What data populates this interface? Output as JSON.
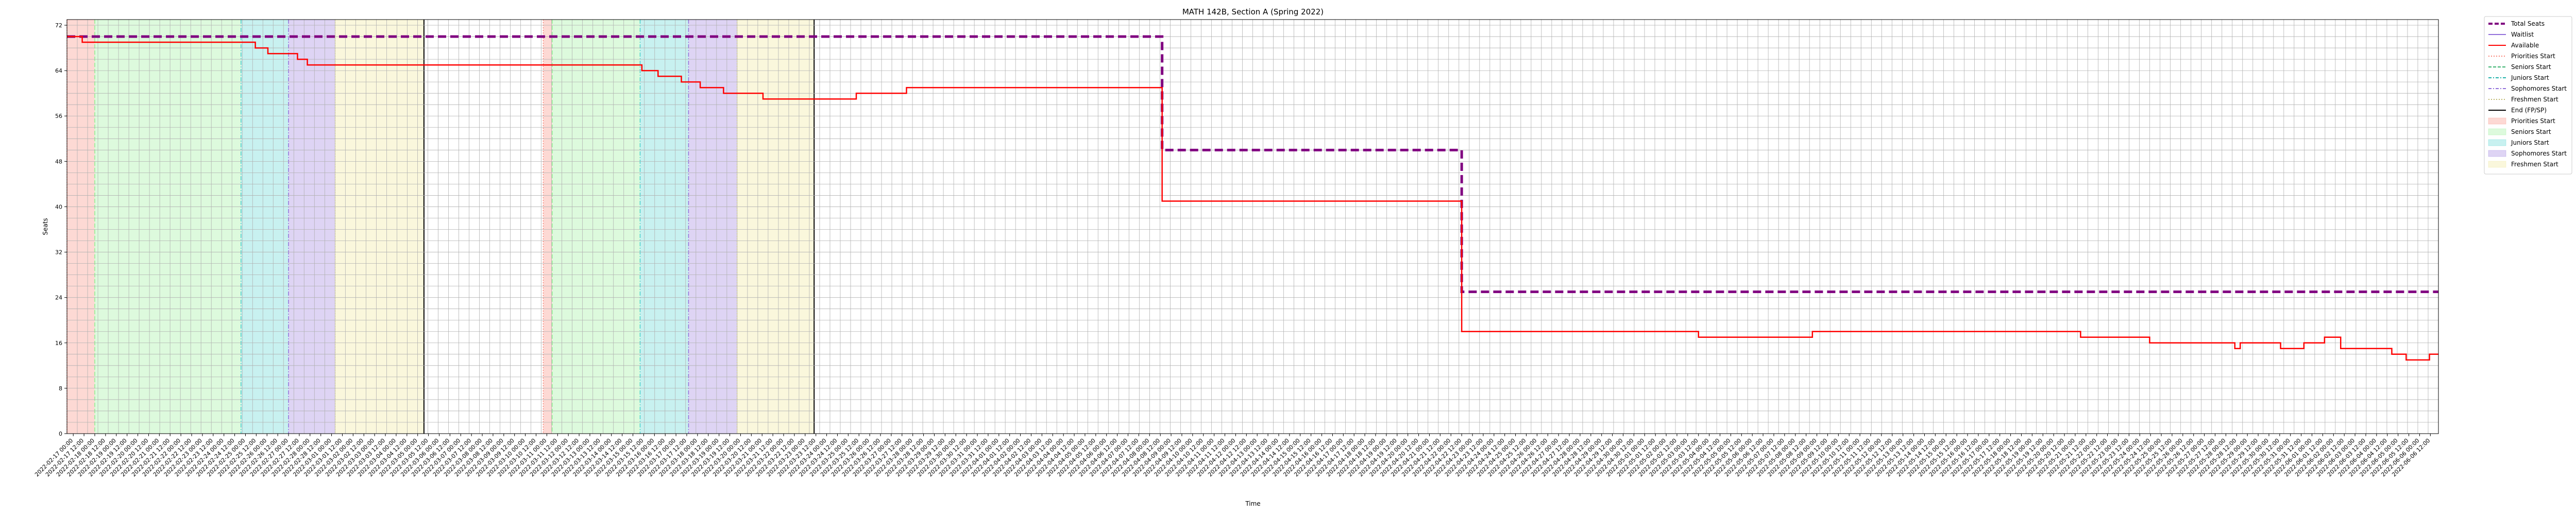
{
  "chart_data": {
    "type": "line",
    "title": "MATH 142B, Section A (Spring 2022)",
    "xlabel": "Time",
    "ylabel": "Seats",
    "ylim": [
      0,
      73
    ],
    "yticks": [
      0,
      8,
      16,
      24,
      32,
      40,
      48,
      56,
      64,
      72
    ],
    "x_range": [
      "2022-02-16 17:00",
      "2022-06-06 21:00"
    ],
    "grid": true,
    "legend_position": "outside-right",
    "colors": {
      "total": "#800080",
      "waitlist": "#9370db",
      "available": "#ff0000",
      "priorities": "#fa8072",
      "seniors": "#90ee90",
      "juniors": "#48d1cc",
      "sophomores": "#9370db",
      "freshmen": "#f0e68c",
      "end": "#000000"
    },
    "legend": [
      {
        "label": "Total Seats",
        "kind": "line",
        "style": "dashed-thick",
        "color": "#800080"
      },
      {
        "label": "Waitlist",
        "kind": "line",
        "style": "solid",
        "color": "#9370db"
      },
      {
        "label": "Available",
        "kind": "line",
        "style": "solid",
        "color": "#ff0000"
      },
      {
        "label": "Priorities Start",
        "kind": "line",
        "style": "dotted",
        "color": "#fa8072"
      },
      {
        "label": "Seniors Start",
        "kind": "line",
        "style": "dashed",
        "color": "#3cb371"
      },
      {
        "label": "Juniors Start",
        "kind": "line",
        "style": "dashdot",
        "color": "#20b2aa"
      },
      {
        "label": "Sophomores Start",
        "kind": "line",
        "style": "dashdot",
        "color": "#9370db"
      },
      {
        "label": "Freshmen Start",
        "kind": "line",
        "style": "dotted",
        "color": "#bdb76b"
      },
      {
        "label": "End (FP/SP)",
        "kind": "line",
        "style": "solid",
        "color": "#000000"
      },
      {
        "label": "Priorities Start",
        "kind": "patch",
        "color": "#fa8072"
      },
      {
        "label": "Seniors Start",
        "kind": "patch",
        "color": "#90ee90"
      },
      {
        "label": "Juniors Start",
        "kind": "patch",
        "color": "#48d1cc"
      },
      {
        "label": "Sophomores Start",
        "kind": "patch",
        "color": "#9370db"
      },
      {
        "label": "Freshmen Start",
        "kind": "patch",
        "color": "#f0e68c"
      }
    ],
    "phases": [
      {
        "kind": "priorities",
        "start": "2022-02-16 17:00",
        "end": "2022-02-18 00:00"
      },
      {
        "kind": "seniors",
        "start": "2022-02-18 00:00",
        "end": "2022-02-24 19:00"
      },
      {
        "kind": "juniors",
        "start": "2022-02-24 19:00",
        "end": "2022-02-27 00:00"
      },
      {
        "kind": "sophomores",
        "start": "2022-02-27 00:00",
        "end": "2022-03-01 04:00"
      },
      {
        "kind": "freshmen",
        "start": "2022-03-01 04:00",
        "end": "2022-03-05 07:00"
      },
      {
        "kind": "end",
        "start": "2022-03-05 07:00",
        "end": "2022-03-05 07:00"
      },
      {
        "kind": "priorities",
        "start": "2022-03-10 20:00",
        "end": "2022-03-11 06:00"
      },
      {
        "kind": "seniors",
        "start": "2022-03-11 06:00",
        "end": "2022-03-15 08:00"
      },
      {
        "kind": "juniors",
        "start": "2022-03-15 08:00",
        "end": "2022-03-17 14:00"
      },
      {
        "kind": "sophomores",
        "start": "2022-03-17 14:00",
        "end": "2022-03-19 20:00"
      },
      {
        "kind": "freshmen",
        "start": "2022-03-19 20:00",
        "end": "2022-03-23 10:00"
      },
      {
        "kind": "end",
        "start": "2022-03-23 10:00",
        "end": "2022-03-23 10:00"
      }
    ],
    "series": [
      {
        "name": "Total Seats",
        "points": [
          [
            "2022-02-16 17:00",
            70
          ],
          [
            "2022-04-08 14:00",
            50
          ],
          [
            "2022-04-22 12:00",
            25
          ],
          [
            "2022-06-06 21:00",
            25
          ]
        ]
      },
      {
        "name": "Available",
        "points": [
          [
            "2022-02-16 17:00",
            70
          ],
          [
            "2022-02-17 10:00",
            69
          ],
          [
            "2022-02-24 19:00",
            69
          ],
          [
            "2022-02-25 11:00",
            68
          ],
          [
            "2022-02-26 01:00",
            67
          ],
          [
            "2022-02-27 00:00",
            67
          ],
          [
            "2022-02-27 10:00",
            66
          ],
          [
            "2022-02-27 21:00",
            65
          ],
          [
            "2022-03-15 01:00",
            65
          ],
          [
            "2022-03-15 10:00",
            64
          ],
          [
            "2022-03-16 04:00",
            63
          ],
          [
            "2022-03-17 06:00",
            62
          ],
          [
            "2022-03-18 03:00",
            61
          ],
          [
            "2022-03-19 05:00",
            60
          ],
          [
            "2022-03-21 01:00",
            59
          ],
          [
            "2022-03-25 09:00",
            60
          ],
          [
            "2022-03-27 17:00",
            61
          ],
          [
            "2022-04-08 14:00",
            41
          ],
          [
            "2022-04-22 12:00",
            18
          ],
          [
            "2022-05-03 12:00",
            17
          ],
          [
            "2022-05-08 19:00",
            18
          ],
          [
            "2022-05-21 06:00",
            17
          ],
          [
            "2022-05-24 11:00",
            16
          ],
          [
            "2022-05-28 10:00",
            15
          ],
          [
            "2022-05-28 16:00",
            16
          ],
          [
            "2022-05-30 13:00",
            15
          ],
          [
            "2022-05-31 15:00",
            16
          ],
          [
            "2022-06-01 14:00",
            17
          ],
          [
            "2022-06-02 08:00",
            15
          ],
          [
            "2022-06-04 17:00",
            14
          ],
          [
            "2022-06-05 09:00",
            13
          ],
          [
            "2022-06-06 11:00",
            14
          ],
          [
            "2022-06-06 21:00",
            14
          ]
        ]
      }
    ]
  }
}
